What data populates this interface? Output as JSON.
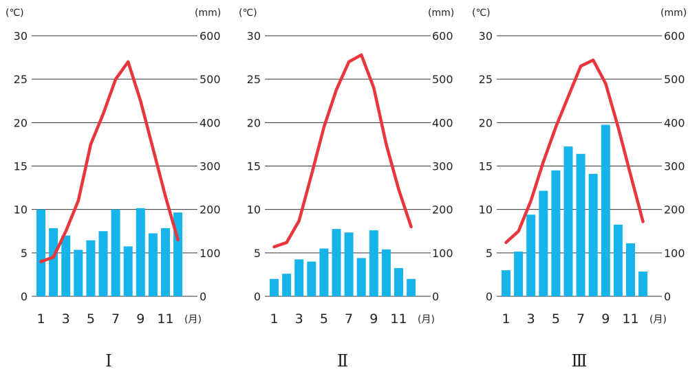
{
  "colors": {
    "bar": "#16b4e8",
    "line": "#e8363c",
    "grid": "#333333",
    "text": "#222222"
  },
  "chart_data": [
    {
      "type": "bar+line",
      "label": "Ⅰ",
      "left_unit": "(℃)",
      "right_unit": "(mm)",
      "x_unit": "(月)",
      "y_left_ticks": [
        "0",
        "5",
        "10",
        "15",
        "20",
        "25",
        "30"
      ],
      "y_right_ticks": [
        "0",
        "100",
        "200",
        "300",
        "400",
        "500",
        "600"
      ],
      "x_ticks": [
        "1",
        "3",
        "5",
        "7",
        "9",
        "11"
      ],
      "months": [
        1,
        2,
        3,
        4,
        5,
        6,
        7,
        8,
        9,
        10,
        11,
        12
      ],
      "temp_range": [
        0,
        30
      ],
      "precip_range": [
        0,
        600
      ],
      "temperature": [
        4,
        4.5,
        7.5,
        11,
        17.5,
        21,
        25,
        27,
        22.5,
        17,
        11.5,
        6.5
      ],
      "precipitation": [
        200,
        157,
        140,
        107,
        129,
        150,
        200,
        115,
        203,
        145,
        157,
        193
      ]
    },
    {
      "type": "bar+line",
      "label": "Ⅱ",
      "left_unit": "(℃)",
      "right_unit": "(mm)",
      "x_unit": "(月)",
      "y_left_ticks": [
        "0",
        "5",
        "10",
        "15",
        "20",
        "25",
        "30"
      ],
      "y_right_ticks": [
        "0",
        "100",
        "200",
        "300",
        "400",
        "500",
        "600"
      ],
      "x_ticks": [
        "1",
        "3",
        "5",
        "7",
        "9",
        "11"
      ],
      "months": [
        1,
        2,
        3,
        4,
        5,
        6,
        7,
        8,
        9,
        10,
        11,
        12
      ],
      "temp_range": [
        0,
        30
      ],
      "precip_range": [
        0,
        600
      ],
      "temperature": [
        5.7,
        6.2,
        8.7,
        14,
        19.5,
        23.8,
        27,
        27.8,
        24,
        17.5,
        12.3,
        8
      ],
      "precipitation": [
        40,
        52,
        85,
        80,
        110,
        155,
        147,
        88,
        152,
        108,
        65,
        40
      ]
    },
    {
      "type": "bar+line",
      "label": "Ⅲ",
      "left_unit": "(℃)",
      "right_unit": "(mm)",
      "x_unit": "(月)",
      "y_left_ticks": [
        "0",
        "5",
        "10",
        "15",
        "20",
        "25",
        "30"
      ],
      "y_right_ticks": [
        "0",
        "100",
        "200",
        "300",
        "400",
        "500",
        "600"
      ],
      "x_ticks": [
        "1",
        "3",
        "5",
        "7",
        "9",
        "11"
      ],
      "months": [
        1,
        2,
        3,
        4,
        5,
        6,
        7,
        8,
        9,
        10,
        11,
        12
      ],
      "temp_range": [
        0,
        30
      ],
      "precip_range": [
        0,
        600
      ],
      "temperature": [
        6.2,
        7.5,
        11,
        15.5,
        19.5,
        23,
        26.5,
        27.2,
        24.5,
        19.5,
        14,
        8.6
      ],
      "precipitation": [
        60,
        103,
        188,
        243,
        290,
        345,
        328,
        282,
        395,
        165,
        122,
        57
      ]
    }
  ]
}
